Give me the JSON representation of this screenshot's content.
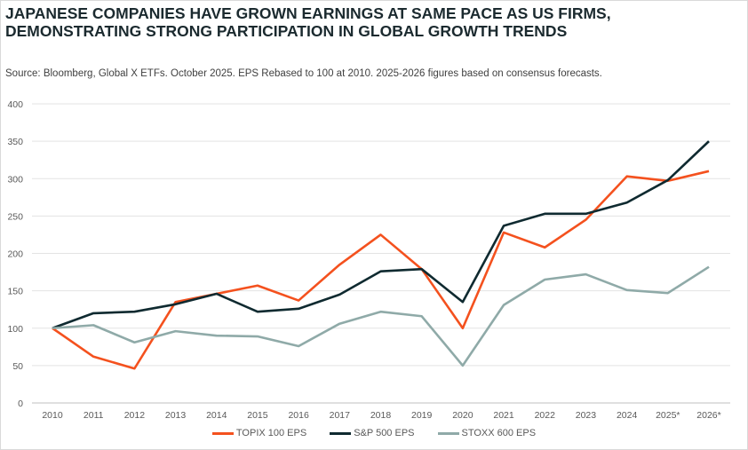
{
  "chart_data": {
    "type": "line",
    "title": "JAPANESE COMPANIES HAVE GROWN EARNINGS AT SAME PACE AS US FIRMS, DEMONSTRATING STRONG PARTICIPATION IN GLOBAL GROWTH TRENDS",
    "subtitle": "Source: Bloomberg, Global X ETFs. October 2025. EPS Rebased to 100 at 2010. 2025-2026 figures based on consensus forecasts.",
    "xlabel": "",
    "ylabel": "",
    "ylim": [
      0,
      400
    ],
    "yticks": [
      0,
      50,
      100,
      150,
      200,
      250,
      300,
      350,
      400
    ],
    "grid": true,
    "legend_position": "bottom",
    "categories": [
      "2010",
      "2011",
      "2012",
      "2013",
      "2014",
      "2015",
      "2016",
      "2017",
      "2018",
      "2019",
      "2020",
      "2021",
      "2022",
      "2023",
      "2024",
      "2025*",
      "2026*"
    ],
    "series": [
      {
        "name": "TOPIX 100 EPS",
        "color": "#f4511e",
        "values": [
          100,
          62,
          46,
          135,
          146,
          157,
          137,
          185,
          225,
          179,
          100,
          228,
          208,
          245,
          303,
          297,
          310
        ]
      },
      {
        "name": "S&P 500 EPS",
        "color": "#0f2a30",
        "values": [
          100,
          120,
          122,
          132,
          146,
          122,
          126,
          145,
          176,
          179,
          135,
          237,
          253,
          253,
          268,
          298,
          350
        ]
      },
      {
        "name": "STOXX 600 EPS",
        "color": "#8faaa8",
        "values": [
          100,
          104,
          81,
          96,
          90,
          89,
          76,
          106,
          122,
          116,
          50,
          131,
          165,
          172,
          151,
          147,
          182
        ]
      }
    ]
  }
}
